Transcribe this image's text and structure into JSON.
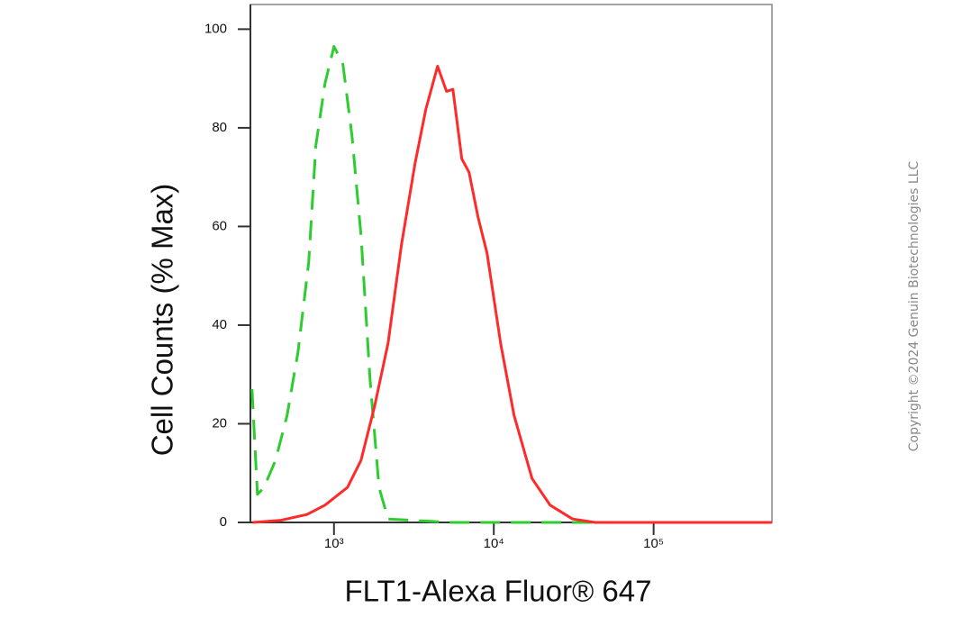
{
  "chart_data": {
    "type": "line",
    "xlabel": "FLT1-Alexa Fluor® 647",
    "ylabel": "Cell Counts (% Max)",
    "copyright": "Copyright ©2024 Genuin Biotechnologies LLC",
    "xscale": "log",
    "xlim": [
      300,
      550000
    ],
    "ylim": [
      0,
      105
    ],
    "xticks": [
      {
        "value": 1000,
        "label": "10³"
      },
      {
        "value": 10000,
        "label": "10⁴"
      },
      {
        "value": 100000,
        "label": "10⁵"
      }
    ],
    "yticks": [
      0,
      20,
      40,
      60,
      80,
      100
    ],
    "grid": false,
    "series": [
      {
        "color": "#2ecc2e",
        "style": "dashed",
        "x": [
          307,
          332,
          364,
          431,
          509,
          595,
          695,
          771,
          879,
          1000,
          1138,
          1296,
          1476,
          1680,
          1913,
          2179,
          5395,
          550000
        ],
        "values": [
          27,
          5.7,
          7,
          12.6,
          21.7,
          34.5,
          52.7,
          76.5,
          89,
          96.5,
          92.9,
          78.3,
          58.2,
          29,
          7.1,
          0.7,
          0,
          0
        ]
      },
      {
        "color": "#ff2a2a",
        "style": "solid",
        "x": [
          310,
          459,
          678,
          879,
          1215,
          1476,
          1793,
          2179,
          2648,
          3216,
          3758,
          4448,
          5060,
          5545,
          6310,
          7000,
          7963,
          9074,
          11030,
          13390,
          17350,
          22490,
          31110,
          43050,
          550000
        ],
        "values": [
          0,
          0.4,
          1.6,
          3.5,
          7.1,
          12.6,
          23.5,
          36.3,
          56.4,
          72.8,
          83.8,
          92.5,
          87.4,
          87.8,
          73.7,
          71,
          61.9,
          54.6,
          36.3,
          21.7,
          8.9,
          3.5,
          0.7,
          0,
          0
        ]
      }
    ]
  }
}
